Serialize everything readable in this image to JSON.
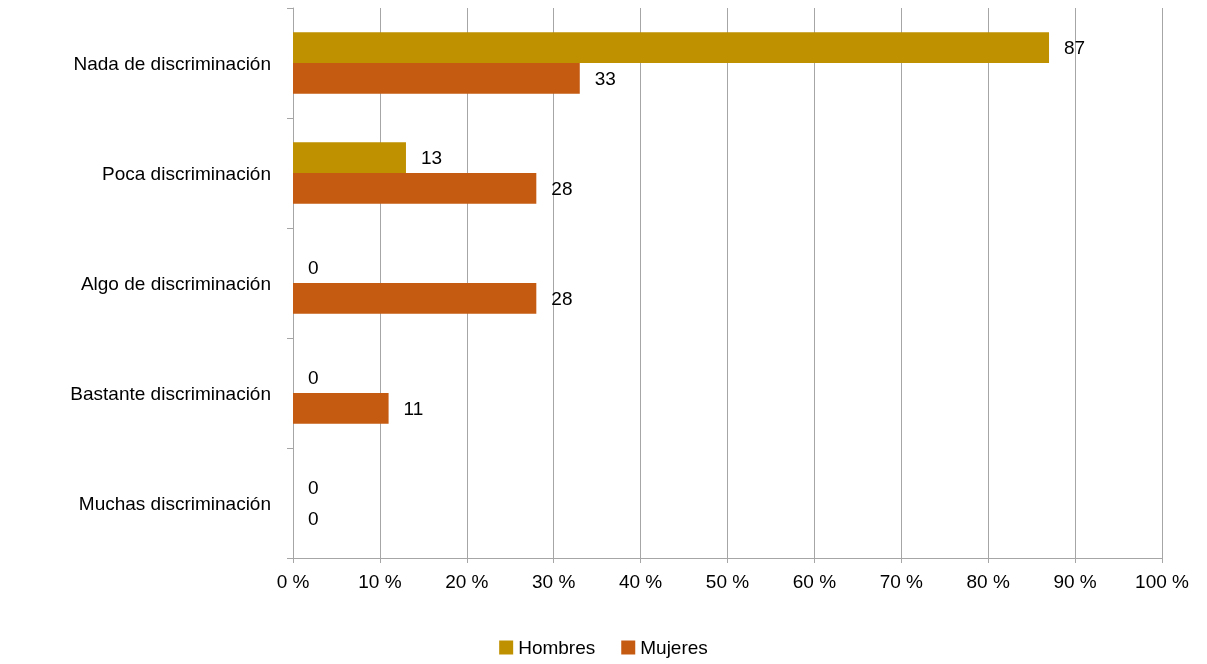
{
  "chart_data": {
    "type": "bar",
    "orientation": "horizontal",
    "categories": [
      "Nada de discriminación",
      "Poca discriminación",
      "Algo de discriminación",
      "Bastante discriminación",
      "Muchas discriminación"
    ],
    "series": [
      {
        "name": "Hombres",
        "color": "#bf9000",
        "values": [
          87,
          13,
          0,
          0,
          0
        ]
      },
      {
        "name": "Mujeres",
        "color": "#c55a11",
        "values": [
          33,
          28,
          28,
          11,
          0
        ]
      }
    ],
    "xlim": [
      0,
      100
    ],
    "xticks": [
      {
        "value": 0,
        "label": "0 %"
      },
      {
        "value": 10,
        "label": "10 %"
      },
      {
        "value": 20,
        "label": "20 %"
      },
      {
        "value": 30,
        "label": "30 %"
      },
      {
        "value": 40,
        "label": "40 %"
      },
      {
        "value": 50,
        "label": "50 %"
      },
      {
        "value": 60,
        "label": "60 %"
      },
      {
        "value": 70,
        "label": "70 %"
      },
      {
        "value": 80,
        "label": "80 %"
      },
      {
        "value": 90,
        "label": "90 %"
      },
      {
        "value": 100,
        "label": "100 %"
      }
    ],
    "grid": "x",
    "legend": "bottom",
    "data_labels": true
  }
}
